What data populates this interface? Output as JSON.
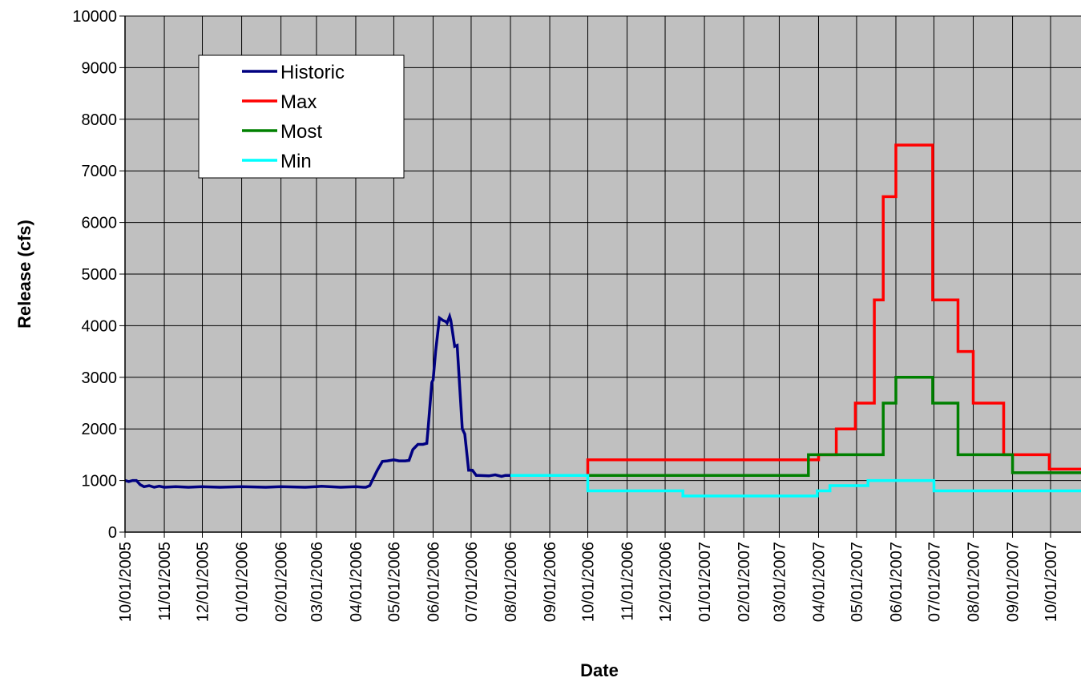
{
  "chart_data": {
    "type": "line",
    "title": "",
    "xlabel": "Date",
    "ylabel": "Release (cfs)",
    "ylim": [
      0,
      10000
    ],
    "yticks": [
      0,
      1000,
      2000,
      3000,
      4000,
      5000,
      6000,
      7000,
      8000,
      9000,
      10000
    ],
    "xlim": [
      "2005-10-01",
      "2007-10-25"
    ],
    "xticks": [
      "10/01/2005",
      "11/01/2005",
      "12/01/2005",
      "01/01/2006",
      "02/01/2006",
      "03/01/2006",
      "04/01/2006",
      "05/01/2006",
      "06/01/2006",
      "07/01/2006",
      "08/01/2006",
      "09/01/2006",
      "10/01/2006",
      "11/01/2006",
      "12/01/2006",
      "01/01/2007",
      "02/01/2007",
      "03/01/2007",
      "04/01/2007",
      "05/01/2007",
      "06/01/2007",
      "07/01/2007",
      "08/01/2007",
      "09/01/2007",
      "10/01/2007"
    ],
    "grid": true,
    "legend_position": "top-left",
    "plot_background": "#c0c0c0",
    "series": [
      {
        "name": "Historic",
        "color": "#000080",
        "x": [
          "2005-10-01",
          "2005-10-04",
          "2005-10-07",
          "2005-10-10",
          "2005-10-13",
          "2005-10-16",
          "2005-10-20",
          "2005-10-24",
          "2005-10-28",
          "2005-11-01",
          "2005-11-10",
          "2005-11-20",
          "2005-12-01",
          "2005-12-15",
          "2006-01-01",
          "2006-01-20",
          "2006-02-01",
          "2006-02-20",
          "2006-03-01",
          "2006-03-05",
          "2006-03-20",
          "2006-04-01",
          "2006-04-07",
          "2006-04-09",
          "2006-04-12",
          "2006-04-15",
          "2006-04-18",
          "2006-04-22",
          "2006-04-26",
          "2006-05-01",
          "2006-05-05",
          "2006-05-10",
          "2006-05-13",
          "2006-05-16",
          "2006-05-20",
          "2006-05-24",
          "2006-05-27",
          "2006-05-28",
          "2006-05-31",
          "2006-06-01",
          "2006-06-03",
          "2006-06-06",
          "2006-06-09",
          "2006-06-11",
          "2006-06-12",
          "2006-06-14",
          "2006-06-15",
          "2006-06-18",
          "2006-06-20",
          "2006-06-24",
          "2006-06-26",
          "2006-06-29",
          "2006-07-02",
          "2006-07-05",
          "2006-07-07",
          "2006-07-15",
          "2006-07-20",
          "2006-07-25",
          "2006-07-28",
          "2006-08-01"
        ],
        "values": [
          1000,
          980,
          1000,
          1000,
          920,
          880,
          900,
          870,
          890,
          870,
          880,
          870,
          880,
          870,
          880,
          870,
          880,
          870,
          880,
          890,
          870,
          880,
          870,
          870,
          900,
          1050,
          1200,
          1370,
          1380,
          1400,
          1380,
          1380,
          1390,
          1600,
          1700,
          1700,
          1720,
          2000,
          2900,
          2950,
          3500,
          4150,
          4100,
          4080,
          4050,
          4180,
          4100,
          3600,
          3620,
          2000,
          1900,
          1200,
          1200,
          1100,
          1100,
          1090,
          1110,
          1080,
          1100,
          1100
        ]
      },
      {
        "name": "Max",
        "color": "#ff0000",
        "x": [
          "2006-10-01",
          "2006-10-01",
          "2007-04-01",
          "2007-04-01",
          "2007-04-15",
          "2007-04-15",
          "2007-04-30",
          "2007-04-30",
          "2007-05-15",
          "2007-05-15",
          "2007-05-22",
          "2007-05-22",
          "2007-06-01",
          "2007-06-01",
          "2007-06-30",
          "2007-06-30",
          "2007-07-20",
          "2007-07-20",
          "2007-08-01",
          "2007-08-01",
          "2007-08-25",
          "2007-08-25",
          "2007-09-30",
          "2007-09-30",
          "2007-10-25"
        ],
        "values": [
          1100,
          1400,
          1400,
          1500,
          1500,
          2000,
          2000,
          2500,
          2500,
          4500,
          4500,
          6500,
          6500,
          7500,
          7500,
          4500,
          4500,
          3500,
          3500,
          2500,
          2500,
          1500,
          1500,
          1220,
          1220
        ]
      },
      {
        "name": "Most",
        "color": "#008000",
        "x": [
          "2006-10-01",
          "2007-03-24",
          "2007-03-24",
          "2007-05-22",
          "2007-05-22",
          "2007-06-01",
          "2007-06-01",
          "2007-06-30",
          "2007-06-30",
          "2007-07-20",
          "2007-07-20",
          "2007-09-01",
          "2007-09-01",
          "2007-10-25"
        ],
        "values": [
          1100,
          1100,
          1500,
          1500,
          2500,
          2500,
          3000,
          3000,
          2500,
          2500,
          1500,
          1500,
          1150,
          1150
        ]
      },
      {
        "name": "Min",
        "color": "#00ffff",
        "x": [
          "2006-08-01",
          "2006-10-01",
          "2006-10-01",
          "2006-12-15",
          "2006-12-15",
          "2007-03-31",
          "2007-03-31",
          "2007-04-10",
          "2007-04-10",
          "2007-05-10",
          "2007-05-10",
          "2007-07-01",
          "2007-07-01",
          "2007-10-25"
        ],
        "values": [
          1100,
          1100,
          800,
          800,
          700,
          700,
          800,
          800,
          900,
          900,
          1000,
          1000,
          800,
          800
        ]
      }
    ]
  }
}
